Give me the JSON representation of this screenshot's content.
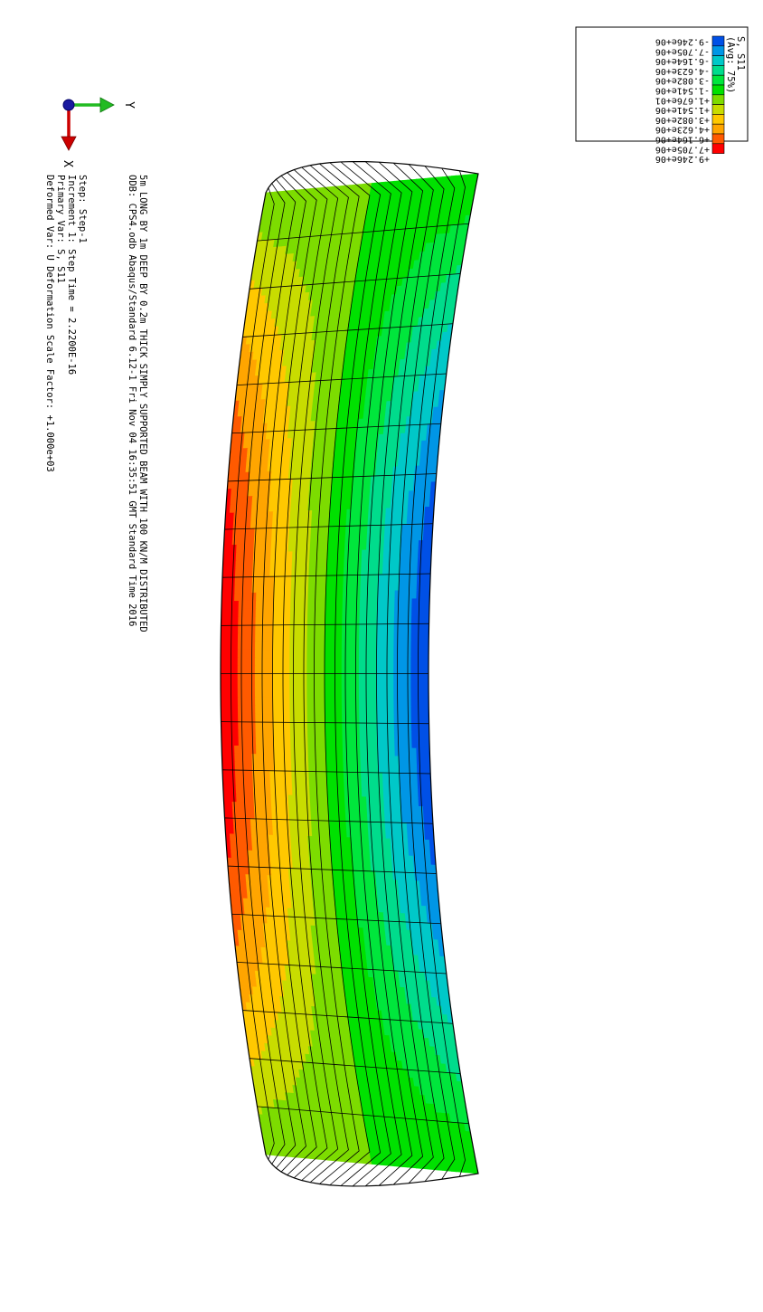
{
  "legend": {
    "title": "S, S11",
    "subtitle": "(Avg: 75%)",
    "values": [
      "+9.246e+06",
      "+7.705e+06",
      "+6.164e+06",
      "+4.623e+06",
      "+3.082e+06",
      "+1.541e+06",
      "+1.676e+01",
      "-1.541e+06",
      "-3.082e+06",
      "-4.623e+06",
      "-6.164e+06",
      "-7.705e+06",
      "-9.246e+06"
    ],
    "colors": [
      "#ff0000",
      "#ff5a00",
      "#ffa500",
      "#ffc800",
      "#c8dc00",
      "#7ddc00",
      "#00e100",
      "#00e63c",
      "#00dc8c",
      "#00c8c8",
      "#0096e6",
      "#0050e6",
      "#0000dc"
    ]
  },
  "triad": {
    "axis_y": "Y",
    "axis_x": "X"
  },
  "info": {
    "title_line": "5m LONG BY 1m DEEP BY 0.2m THICK SIMPLY SUPPORTED BEAM WITH 100 KN/M DISTRIBUTED",
    "odb_line": "ODB: CPS4.odb    Abaqus/Standard 6.12-1    Fri Nov 04 16:35:51 GMT Standard Time 2016",
    "step_line": "Step: Step-1",
    "increment_line": "Increment    1: Step Time =    2.2200E-16",
    "primary_var_line": "Primary Var: S, S11",
    "deformed_var_line": "Deformed Var: U  Deformation Scale Factor: +1.000e+03"
  }
}
